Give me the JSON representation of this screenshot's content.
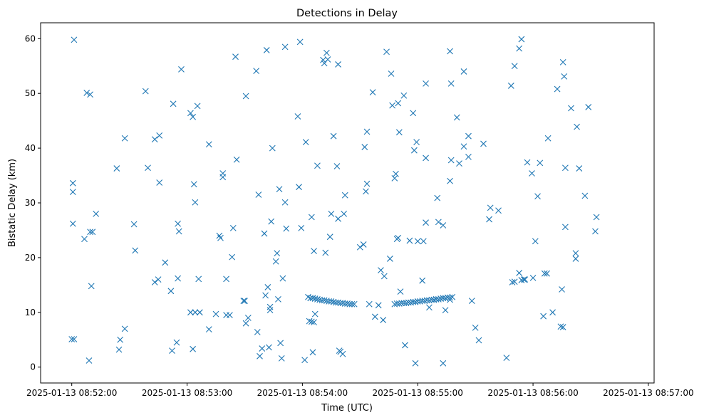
{
  "chart_data": {
    "type": "scatter",
    "title": "Detections in Delay",
    "xlabel": "Time (UTC)",
    "ylabel": "Bistatic Delay (km)",
    "marker": "x",
    "color": "#1f77b4",
    "grid": false,
    "x_unit": "minutes after 2025-01-13 08:52:00",
    "xlim": [
      -0.27,
      5.05
    ],
    "ylim": [
      -2.9,
      62.9
    ],
    "x_ticks": [
      {
        "value": 0,
        "label": "2025-01-13 08:52:00"
      },
      {
        "value": 1,
        "label": "2025-01-13 08:53:00"
      },
      {
        "value": 2,
        "label": "2025-01-13 08:54:00"
      },
      {
        "value": 3,
        "label": "2025-01-13 08:55:00"
      },
      {
        "value": 4,
        "label": "2025-01-13 08:56:00"
      },
      {
        "value": 5,
        "label": "2025-01-13 08:57:00"
      }
    ],
    "y_ticks": [
      {
        "value": 0,
        "label": "0"
      },
      {
        "value": 10,
        "label": "10"
      },
      {
        "value": 20,
        "label": "20"
      },
      {
        "value": 30,
        "label": "30"
      },
      {
        "value": 40,
        "label": "40"
      },
      {
        "value": 50,
        "label": "50"
      },
      {
        "value": 60,
        "label": "60"
      }
    ],
    "points": [
      [
        0.02,
        59.8
      ],
      [
        0.01,
        33.6
      ],
      [
        0.01,
        32.0
      ],
      [
        0.01,
        26.2
      ],
      [
        0.0,
        5.1
      ],
      [
        0.02,
        5.1
      ],
      [
        0.13,
        50.1
      ],
      [
        0.16,
        49.8
      ],
      [
        0.11,
        23.4
      ],
      [
        0.16,
        24.7
      ],
      [
        0.18,
        24.7
      ],
      [
        0.21,
        28.0
      ],
      [
        0.17,
        14.8
      ],
      [
        0.15,
        1.2
      ],
      [
        0.39,
        36.3
      ],
      [
        0.46,
        41.8
      ],
      [
        0.42,
        5.0
      ],
      [
        0.41,
        3.2
      ],
      [
        0.46,
        7.0
      ],
      [
        0.54,
        26.1
      ],
      [
        0.55,
        21.3
      ],
      [
        0.64,
        50.4
      ],
      [
        0.66,
        36.4
      ],
      [
        0.72,
        41.6
      ],
      [
        0.76,
        42.3
      ],
      [
        0.76,
        33.7
      ],
      [
        0.72,
        15.5
      ],
      [
        0.75,
        16.0
      ],
      [
        0.81,
        19.1
      ],
      [
        0.88,
        48.1
      ],
      [
        0.86,
        13.9
      ],
      [
        0.87,
        3.0
      ],
      [
        0.91,
        4.5
      ],
      [
        0.92,
        16.2
      ],
      [
        0.92,
        26.2
      ],
      [
        0.93,
        24.8
      ],
      [
        0.95,
        54.4
      ],
      [
        1.03,
        46.4
      ],
      [
        1.05,
        45.7
      ],
      [
        1.09,
        47.7
      ],
      [
        1.06,
        33.4
      ],
      [
        1.07,
        30.1
      ],
      [
        1.1,
        16.1
      ],
      [
        1.03,
        10.0
      ],
      [
        1.07,
        10.0
      ],
      [
        1.11,
        10.0
      ],
      [
        1.05,
        3.3
      ],
      [
        1.19,
        40.7
      ],
      [
        1.19,
        6.9
      ],
      [
        1.28,
        24.0
      ],
      [
        1.29,
        23.6
      ],
      [
        1.31,
        35.4
      ],
      [
        1.31,
        34.7
      ],
      [
        1.25,
        9.7
      ],
      [
        1.34,
        16.1
      ],
      [
        1.34,
        9.5
      ],
      [
        1.37,
        9.5
      ],
      [
        1.4,
        25.4
      ],
      [
        1.39,
        20.1
      ],
      [
        1.42,
        56.7
      ],
      [
        1.43,
        37.9
      ],
      [
        1.49,
        12.1
      ],
      [
        1.5,
        12.1
      ],
      [
        1.51,
        8.0
      ],
      [
        1.53,
        9.0
      ],
      [
        1.51,
        49.5
      ],
      [
        1.6,
        54.1
      ],
      [
        1.61,
        6.4
      ],
      [
        1.62,
        31.5
      ],
      [
        1.63,
        2.0
      ],
      [
        1.65,
        3.4
      ],
      [
        1.67,
        24.4
      ],
      [
        1.68,
        13.1
      ],
      [
        1.69,
        57.9
      ],
      [
        1.7,
        14.6
      ],
      [
        1.71,
        3.6
      ],
      [
        1.72,
        10.4
      ],
      [
        1.72,
        11.0
      ],
      [
        1.73,
        26.6
      ],
      [
        1.74,
        40.0
      ],
      [
        1.77,
        19.3
      ],
      [
        1.78,
        20.8
      ],
      [
        1.79,
        12.4
      ],
      [
        1.8,
        32.5
      ],
      [
        1.81,
        4.4
      ],
      [
        1.82,
        1.6
      ],
      [
        1.83,
        16.2
      ],
      [
        1.85,
        58.5
      ],
      [
        1.86,
        25.3
      ],
      [
        1.85,
        30.1
      ],
      [
        1.96,
        45.8
      ],
      [
        1.97,
        32.9
      ],
      [
        1.98,
        59.4
      ],
      [
        1.99,
        25.4
      ],
      [
        2.03,
        41.1
      ],
      [
        2.02,
        1.3
      ],
      [
        2.08,
        27.4
      ],
      [
        2.1,
        21.2
      ],
      [
        2.11,
        9.7
      ],
      [
        2.1,
        8.2
      ],
      [
        2.13,
        36.8
      ],
      [
        2.09,
        2.7
      ],
      [
        2.18,
        56.1
      ],
      [
        2.19,
        55.5
      ],
      [
        2.21,
        57.4
      ],
      [
        2.22,
        56.2
      ],
      [
        2.2,
        20.9
      ],
      [
        2.24,
        23.8
      ],
      [
        2.25,
        28.0
      ],
      [
        2.27,
        42.2
      ],
      [
        2.3,
        36.7
      ],
      [
        2.31,
        55.3
      ],
      [
        2.31,
        27.1
      ],
      [
        2.32,
        3.0
      ],
      [
        2.33,
        2.8
      ],
      [
        2.36,
        28.0
      ],
      [
        2.37,
        31.4
      ],
      [
        2.35,
        2.4
      ],
      [
        2.05,
        12.8
      ],
      [
        2.07,
        12.6
      ],
      [
        2.09,
        12.6
      ],
      [
        2.11,
        12.5
      ],
      [
        2.13,
        12.4
      ],
      [
        2.15,
        12.3
      ],
      [
        2.17,
        12.2
      ],
      [
        2.19,
        12.2
      ],
      [
        2.21,
        12.1
      ],
      [
        2.23,
        12.0
      ],
      [
        2.25,
        12.0
      ],
      [
        2.27,
        11.9
      ],
      [
        2.29,
        11.8
      ],
      [
        2.31,
        11.8
      ],
      [
        2.33,
        11.7
      ],
      [
        2.35,
        11.7
      ],
      [
        2.37,
        11.6
      ],
      [
        2.39,
        11.6
      ],
      [
        2.41,
        11.5
      ],
      [
        2.43,
        11.5
      ],
      [
        2.45,
        11.5
      ],
      [
        2.06,
        8.4
      ],
      [
        2.08,
        8.3
      ],
      [
        2.5,
        21.9
      ],
      [
        2.53,
        22.4
      ],
      [
        2.54,
        40.2
      ],
      [
        2.55,
        32.1
      ],
      [
        2.56,
        33.5
      ],
      [
        2.56,
        43.0
      ],
      [
        2.58,
        11.5
      ],
      [
        2.61,
        50.2
      ],
      [
        2.63,
        9.2
      ],
      [
        2.66,
        11.3
      ],
      [
        2.68,
        17.7
      ],
      [
        2.7,
        8.6
      ],
      [
        2.71,
        16.6
      ],
      [
        2.73,
        57.6
      ],
      [
        2.76,
        19.8
      ],
      [
        2.77,
        53.6
      ],
      [
        2.78,
        47.8
      ],
      [
        2.8,
        34.5
      ],
      [
        2.81,
        35.3
      ],
      [
        2.83,
        48.2
      ],
      [
        2.84,
        42.9
      ],
      [
        2.85,
        13.8
      ],
      [
        2.82,
        23.4
      ],
      [
        2.83,
        23.6
      ],
      [
        2.88,
        49.6
      ],
      [
        2.89,
        4.0
      ],
      [
        2.93,
        23.1
      ],
      [
        2.96,
        46.4
      ],
      [
        2.97,
        39.6
      ],
      [
        2.99,
        41.1
      ],
      [
        3.0,
        23.0
      ],
      [
        2.98,
        0.7
      ],
      [
        3.04,
        15.8
      ],
      [
        3.05,
        23.0
      ],
      [
        3.07,
        51.8
      ],
      [
        3.07,
        38.2
      ],
      [
        3.07,
        26.4
      ],
      [
        3.1,
        10.9
      ],
      [
        3.17,
        30.9
      ],
      [
        3.18,
        26.5
      ],
      [
        3.22,
        0.7
      ],
      [
        3.24,
        10.4
      ],
      [
        3.22,
        25.9
      ],
      [
        3.28,
        57.7
      ],
      [
        3.29,
        51.8
      ],
      [
        3.28,
        34.0
      ],
      [
        3.29,
        37.8
      ],
      [
        3.34,
        45.6
      ],
      [
        3.36,
        37.2
      ],
      [
        3.4,
        40.3
      ],
      [
        3.4,
        54.0
      ],
      [
        3.44,
        42.2
      ],
      [
        3.44,
        38.4
      ],
      [
        3.47,
        12.1
      ],
      [
        3.5,
        7.2
      ],
      [
        3.53,
        4.9
      ],
      [
        3.57,
        40.8
      ],
      [
        3.62,
        27.0
      ],
      [
        3.63,
        29.1
      ],
      [
        3.7,
        28.6
      ],
      [
        3.77,
        1.7
      ],
      [
        3.82,
        15.5
      ],
      [
        3.84,
        15.6
      ],
      [
        3.81,
        51.4
      ],
      [
        3.84,
        55.0
      ],
      [
        3.88,
        58.2
      ],
      [
        3.9,
        59.9
      ],
      [
        3.88,
        17.2
      ],
      [
        3.9,
        15.9
      ],
      [
        3.92,
        16.0
      ],
      [
        3.93,
        16.0
      ],
      [
        3.95,
        37.4
      ],
      [
        3.99,
        35.4
      ],
      [
        4.0,
        16.3
      ],
      [
        4.02,
        23.0
      ],
      [
        4.04,
        31.2
      ],
      [
        4.06,
        37.3
      ],
      [
        4.09,
        9.3
      ],
      [
        4.1,
        17.1
      ],
      [
        4.12,
        17.1
      ],
      [
        4.13,
        41.8
      ],
      [
        4.17,
        10.0
      ],
      [
        4.21,
        50.8
      ],
      [
        4.24,
        7.4
      ],
      [
        4.26,
        7.3
      ],
      [
        4.25,
        14.2
      ],
      [
        4.26,
        55.7
      ],
      [
        4.27,
        53.1
      ],
      [
        4.28,
        36.4
      ],
      [
        4.28,
        25.6
      ],
      [
        4.33,
        47.3
      ],
      [
        4.37,
        20.8
      ],
      [
        4.37,
        19.8
      ],
      [
        4.38,
        43.9
      ],
      [
        4.4,
        36.3
      ],
      [
        4.45,
        31.3
      ],
      [
        4.48,
        47.5
      ],
      [
        4.54,
        24.8
      ],
      [
        4.55,
        27.4
      ],
      [
        2.8,
        11.5
      ],
      [
        2.82,
        11.6
      ],
      [
        2.84,
        11.6
      ],
      [
        2.86,
        11.7
      ],
      [
        2.88,
        11.7
      ],
      [
        2.9,
        11.7
      ],
      [
        2.92,
        11.8
      ],
      [
        2.94,
        11.8
      ],
      [
        2.96,
        11.9
      ],
      [
        2.98,
        11.9
      ],
      [
        3.0,
        12.0
      ],
      [
        3.02,
        12.0
      ],
      [
        3.04,
        12.1
      ],
      [
        3.06,
        12.1
      ],
      [
        3.08,
        12.2
      ],
      [
        3.1,
        12.2
      ],
      [
        3.12,
        12.3
      ],
      [
        3.14,
        12.3
      ],
      [
        3.16,
        12.4
      ],
      [
        3.18,
        12.4
      ],
      [
        3.2,
        12.5
      ],
      [
        3.22,
        12.6
      ],
      [
        3.24,
        12.6
      ],
      [
        3.26,
        12.7
      ],
      [
        3.28,
        12.7
      ],
      [
        3.3,
        12.8
      ],
      [
        3.14,
        12.3
      ],
      [
        3.16,
        12.4
      ],
      [
        3.28,
        12.3
      ]
    ]
  }
}
